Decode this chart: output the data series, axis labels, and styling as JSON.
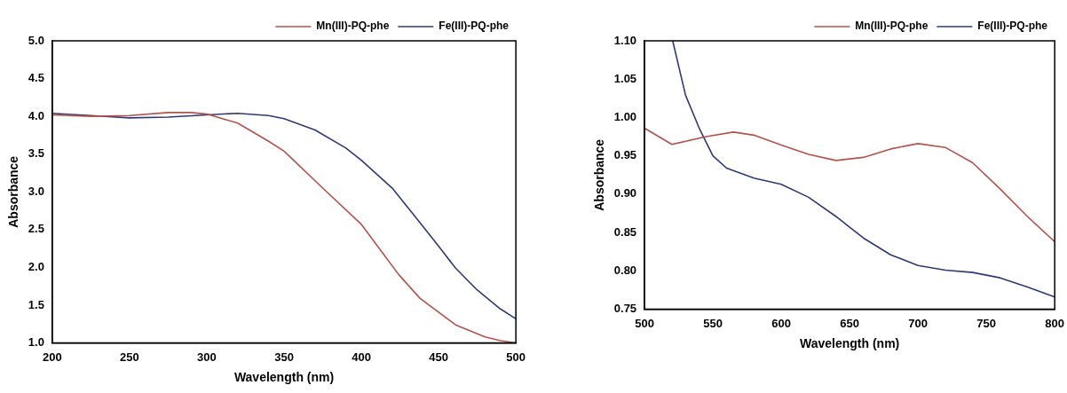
{
  "chart_data": [
    {
      "type": "line",
      "xlabel": "Wavelength (nm)",
      "ylabel": "Absorbance",
      "xlim": [
        200,
        500
      ],
      "xticks": [
        200,
        250,
        300,
        350,
        400,
        450,
        500
      ],
      "ylim": [
        1.0,
        5.0
      ],
      "yticks": [
        {
          "value": 1.0,
          "label": "1.0"
        },
        {
          "value": 1.5,
          "label": "1.5"
        },
        {
          "value": 2.0,
          "label": "2.0"
        },
        {
          "value": 2.5,
          "label": "2.5"
        },
        {
          "value": 3.0,
          "label": "3.0"
        },
        {
          "value": 3.5,
          "label": "3.5"
        },
        {
          "value": 4.0,
          "label": "4.0"
        },
        {
          "value": 4.5,
          "label": "4.5"
        },
        {
          "value": 5.0,
          "label": "5.0"
        }
      ],
      "grid": false,
      "legend": "top right",
      "marker": "none",
      "line_style": "solid",
      "series": [
        {
          "name": "Mn(III)-PQ-phe",
          "color": "#b5524a",
          "x": [
            200,
            225,
            250,
            275,
            290,
            300,
            320,
            340,
            350,
            375,
            400,
            412,
            424,
            438,
            461,
            480,
            490,
            500
          ],
          "values": [
            4.02,
            4.0,
            4.01,
            4.05,
            4.05,
            4.03,
            3.91,
            3.67,
            3.54,
            3.05,
            2.57,
            2.24,
            1.91,
            1.59,
            1.24,
            1.08,
            1.03,
            1.0
          ]
        },
        {
          "name": "Fe(III)-PQ-phe",
          "color": "#2e3a78",
          "x": [
            200,
            225,
            250,
            275,
            300,
            320,
            340,
            350,
            370,
            390,
            400,
            420,
            440,
            450,
            461,
            475,
            490,
            500
          ],
          "values": [
            4.04,
            4.01,
            3.98,
            3.99,
            4.02,
            4.04,
            4.01,
            3.97,
            3.82,
            3.58,
            3.42,
            3.05,
            2.54,
            2.28,
            1.99,
            1.7,
            1.45,
            1.32
          ]
        }
      ]
    },
    {
      "type": "line",
      "xlabel": "Wavelength (nm)",
      "ylabel": "Absorbance",
      "xlim": [
        500,
        800
      ],
      "xticks": [
        500,
        550,
        600,
        650,
        700,
        750,
        800
      ],
      "ylim": [
        0.75,
        1.1
      ],
      "yticks": [
        {
          "value": 0.75,
          "label": "0.75"
        },
        {
          "value": 0.8,
          "label": "0.80"
        },
        {
          "value": 0.85,
          "label": "0.85"
        },
        {
          "value": 0.9,
          "label": "0.90"
        },
        {
          "value": 0.95,
          "label": "0.95"
        },
        {
          "value": 1.0,
          "label": "1.00"
        },
        {
          "value": 1.05,
          "label": "1.05"
        },
        {
          "value": 1.1,
          "label": "1.10"
        }
      ],
      "grid": false,
      "legend": "top right",
      "marker": "none",
      "line_style": "solid",
      "series": [
        {
          "name": "Mn(III)-PQ-phe",
          "color": "#b5524a",
          "x": [
            500,
            520,
            545,
            565,
            580,
            600,
            620,
            640,
            660,
            680,
            700,
            720,
            740,
            760,
            780,
            800
          ],
          "values": [
            0.986,
            0.965,
            0.975,
            0.981,
            0.977,
            0.964,
            0.952,
            0.944,
            0.948,
            0.959,
            0.966,
            0.961,
            0.941,
            0.907,
            0.871,
            0.838
          ]
        },
        {
          "name": "Fe(III)-PQ-phe",
          "color": "#2e3a78",
          "x": [
            520.6,
            530,
            540,
            550,
            560,
            580,
            600,
            620,
            640,
            660,
            680,
            700,
            720,
            740,
            760,
            780,
            800
          ],
          "values": [
            1.1,
            1.029,
            0.986,
            0.95,
            0.934,
            0.921,
            0.913,
            0.896,
            0.871,
            0.843,
            0.821,
            0.807,
            0.801,
            0.798,
            0.791,
            0.779,
            0.766
          ]
        }
      ]
    }
  ]
}
